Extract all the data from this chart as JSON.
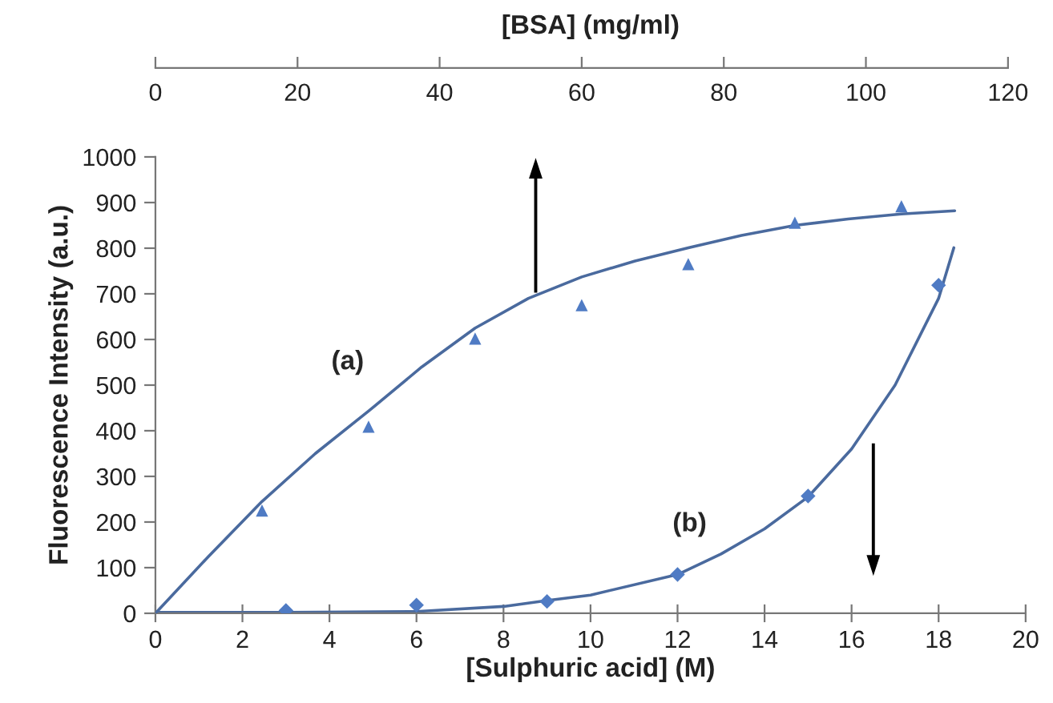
{
  "chart_data": {
    "type": "scatter",
    "xlabel": "[Sulphuric acid] (M)",
    "x2label": "[BSA] (mg/ml)",
    "ylabel": "Fluorescence Intensity (a.u.)",
    "xlim": [
      0,
      20
    ],
    "xticks": [
      0,
      2,
      4,
      6,
      8,
      10,
      12,
      14,
      16,
      18,
      20
    ],
    "x2lim": [
      0,
      120
    ],
    "x2ticks": [
      0,
      20,
      40,
      60,
      80,
      100,
      120
    ],
    "ylim": [
      0,
      1000
    ],
    "yticks": [
      0,
      100,
      200,
      300,
      400,
      500,
      600,
      700,
      800,
      900,
      1000
    ],
    "grid": false,
    "series": [
      {
        "axis": "x2",
        "marker": "triangle",
        "color": "#4f7bc4",
        "x": [
          15,
          30,
          45,
          60,
          75,
          90,
          105
        ],
        "values": [
          225,
          409,
          602,
          675,
          765,
          856,
          892
        ]
      },
      {
        "type": "line",
        "name": "(a)",
        "axis": "x2",
        "marker": "none",
        "line_style": "solid",
        "color": "#4a6a9e",
        "x": [
          0,
          7.5,
          15,
          22.5,
          30,
          37.5,
          45,
          52.5,
          60,
          67.5,
          75,
          82.5,
          90,
          97.5,
          105,
          112.5
        ],
        "values": [
          0,
          125,
          245,
          350,
          443,
          540,
          625,
          690,
          737,
          772,
          801,
          828,
          850,
          864,
          875,
          882
        ]
      },
      {
        "marker": "diamond",
        "color": "#4f7bc4",
        "x": [
          3,
          6,
          9,
          12,
          15,
          18
        ],
        "values": [
          6,
          18,
          26,
          85,
          257,
          719
        ]
      },
      {
        "type": "line",
        "name": "(b)",
        "marker": "none",
        "line_style": "solid",
        "color": "#4a6a9e",
        "x": [
          0,
          3,
          6,
          8,
          9,
          10,
          12,
          13,
          14,
          15,
          16,
          17,
          18,
          18.35
        ],
        "values": [
          2,
          2,
          4,
          15,
          28,
          40,
          85,
          130,
          185,
          255,
          360,
          500,
          690,
          801
        ]
      }
    ]
  }
}
